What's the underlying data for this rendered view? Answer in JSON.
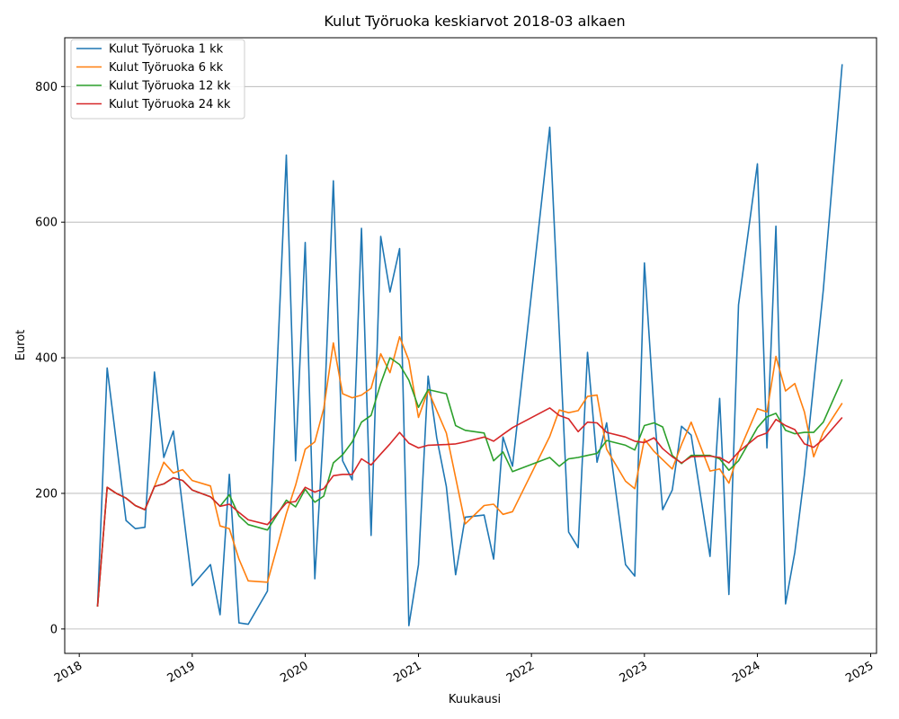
{
  "chart_data": {
    "type": "line",
    "title": "Kulut Työruoka keskiarvot 2018-03 alkaen",
    "xlabel": "Kuukausi",
    "ylabel": "Eurot",
    "xlim": [
      "2017-11-15",
      "2025-01-20"
    ],
    "ylim": [
      -36,
      872
    ],
    "x_ticks": [
      "2018",
      "2019",
      "2020",
      "2021",
      "2022",
      "2023",
      "2024",
      "2025"
    ],
    "y_ticks": [
      0,
      200,
      400,
      600,
      800
    ],
    "grid": "horizontal",
    "legend_placement": "top-left",
    "series": [
      {
        "name": "Kulut Työruoka 1 kk",
        "color": "#1f77b4",
        "points": [
          [
            "2018-03",
            33
          ],
          [
            "2018-04",
            385
          ],
          [
            "2018-06",
            160
          ],
          [
            "2018-07",
            148
          ],
          [
            "2018-08",
            150
          ],
          [
            "2018-09",
            379
          ],
          [
            "2018-10",
            253
          ],
          [
            "2018-11",
            292
          ],
          [
            "2019-01",
            64
          ],
          [
            "2019-03",
            95
          ],
          [
            "2019-04",
            21
          ],
          [
            "2019-05",
            228
          ],
          [
            "2019-06",
            9
          ],
          [
            "2019-07",
            7
          ],
          [
            "2019-09",
            56
          ],
          [
            "2019-11",
            699
          ],
          [
            "2019-12",
            248
          ],
          [
            "2020-01",
            570
          ],
          [
            "2020-02",
            74
          ],
          [
            "2020-03",
            300
          ],
          [
            "2020-04",
            661
          ],
          [
            "2020-05",
            248
          ],
          [
            "2020-06",
            220
          ],
          [
            "2020-07",
            591
          ],
          [
            "2020-08",
            138
          ],
          [
            "2020-09",
            579
          ],
          [
            "2020-10",
            497
          ],
          [
            "2020-11",
            561
          ],
          [
            "2020-12",
            5
          ],
          [
            "2021-01",
            95
          ],
          [
            "2021-02",
            373
          ],
          [
            "2021-03",
            282
          ],
          [
            "2021-04",
            210
          ],
          [
            "2021-05",
            80
          ],
          [
            "2021-06",
            165
          ],
          [
            "2021-08",
            168
          ],
          [
            "2021-09",
            103
          ],
          [
            "2021-10",
            283
          ],
          [
            "2021-11",
            240
          ],
          [
            "2022-03",
            740
          ],
          [
            "2022-05",
            143
          ],
          [
            "2022-06",
            120
          ],
          [
            "2022-07",
            408
          ],
          [
            "2022-08",
            246
          ],
          [
            "2022-09",
            304
          ],
          [
            "2022-11",
            95
          ],
          [
            "2022-12",
            78
          ],
          [
            "2023-01",
            540
          ],
          [
            "2023-02",
            322
          ],
          [
            "2023-03",
            176
          ],
          [
            "2023-04",
            205
          ],
          [
            "2023-05",
            299
          ],
          [
            "2023-06",
            286
          ],
          [
            "2023-08",
            107
          ],
          [
            "2023-09",
            340
          ],
          [
            "2023-10",
            51
          ],
          [
            "2023-11",
            478
          ],
          [
            "2024-01",
            686
          ],
          [
            "2024-02",
            267
          ],
          [
            "2024-03",
            594
          ],
          [
            "2024-04",
            37
          ],
          [
            "2024-05",
            113
          ],
          [
            "2024-06",
            228
          ],
          [
            "2024-08",
            500
          ],
          [
            "2024-10",
            833
          ]
        ]
      },
      {
        "name": "Kulut Työruoka 6 kk",
        "color": "#ff7f0e",
        "points": [
          [
            "2018-03",
            33
          ],
          [
            "2018-04",
            209
          ],
          [
            "2018-05",
            200
          ],
          [
            "2018-06",
            193
          ],
          [
            "2018-07",
            182
          ],
          [
            "2018-08",
            176
          ],
          [
            "2018-09",
            210
          ],
          [
            "2018-10",
            246
          ],
          [
            "2018-11",
            230
          ],
          [
            "2018-12",
            235
          ],
          [
            "2019-01",
            219
          ],
          [
            "2019-03",
            211
          ],
          [
            "2019-04",
            152
          ],
          [
            "2019-05",
            148
          ],
          [
            "2019-06",
            103
          ],
          [
            "2019-07",
            71
          ],
          [
            "2019-09",
            69
          ],
          [
            "2019-11",
            170
          ],
          [
            "2019-12",
            212
          ],
          [
            "2020-01",
            265
          ],
          [
            "2020-02",
            276
          ],
          [
            "2020-03",
            325
          ],
          [
            "2020-04",
            422
          ],
          [
            "2020-05",
            347
          ],
          [
            "2020-06",
            341
          ],
          [
            "2020-07",
            345
          ],
          [
            "2020-08",
            355
          ],
          [
            "2020-09",
            406
          ],
          [
            "2020-10",
            378
          ],
          [
            "2020-11",
            431
          ],
          [
            "2020-12",
            396
          ],
          [
            "2021-01",
            312
          ],
          [
            "2021-02",
            352
          ],
          [
            "2021-04",
            289
          ],
          [
            "2021-06",
            155
          ],
          [
            "2021-08",
            182
          ],
          [
            "2021-09",
            184
          ],
          [
            "2021-10",
            169
          ],
          [
            "2021-11",
            173
          ],
          [
            "2022-03",
            284
          ],
          [
            "2022-04",
            323
          ],
          [
            "2022-05",
            319
          ],
          [
            "2022-06",
            322
          ],
          [
            "2022-07",
            343
          ],
          [
            "2022-08",
            345
          ],
          [
            "2022-09",
            265
          ],
          [
            "2022-11",
            218
          ],
          [
            "2022-12",
            207
          ],
          [
            "2023-01",
            280
          ],
          [
            "2023-02",
            262
          ],
          [
            "2023-04",
            236
          ],
          [
            "2023-05",
            272
          ],
          [
            "2023-06",
            305
          ],
          [
            "2023-08",
            233
          ],
          [
            "2023-09",
            236
          ],
          [
            "2023-10",
            215
          ],
          [
            "2023-11",
            260
          ],
          [
            "2024-01",
            325
          ],
          [
            "2024-02",
            320
          ],
          [
            "2024-03",
            402
          ],
          [
            "2024-04",
            351
          ],
          [
            "2024-05",
            362
          ],
          [
            "2024-06",
            320
          ],
          [
            "2024-07",
            254
          ],
          [
            "2024-08",
            290
          ],
          [
            "2024-10",
            333
          ]
        ]
      },
      {
        "name": "Kulut Työruoka 12 kk",
        "color": "#2ca02c",
        "points": [
          [
            "2018-03",
            33
          ],
          [
            "2018-04",
            209
          ],
          [
            "2018-05",
            200
          ],
          [
            "2018-06",
            193
          ],
          [
            "2018-07",
            182
          ],
          [
            "2018-08",
            176
          ],
          [
            "2018-09",
            210
          ],
          [
            "2018-10",
            214
          ],
          [
            "2018-11",
            223
          ],
          [
            "2018-12",
            219
          ],
          [
            "2019-01",
            205
          ],
          [
            "2019-03",
            195
          ],
          [
            "2019-04",
            181
          ],
          [
            "2019-05",
            198
          ],
          [
            "2019-06",
            167
          ],
          [
            "2019-07",
            154
          ],
          [
            "2019-09",
            146
          ],
          [
            "2019-11",
            190
          ],
          [
            "2019-12",
            180
          ],
          [
            "2020-01",
            206
          ],
          [
            "2020-02",
            187
          ],
          [
            "2020-03",
            196
          ],
          [
            "2020-04",
            245
          ],
          [
            "2020-05",
            257
          ],
          [
            "2020-06",
            276
          ],
          [
            "2020-07",
            305
          ],
          [
            "2020-08",
            315
          ],
          [
            "2020-09",
            362
          ],
          [
            "2020-10",
            400
          ],
          [
            "2020-11",
            390
          ],
          [
            "2020-12",
            367
          ],
          [
            "2021-01",
            327
          ],
          [
            "2021-02",
            353
          ],
          [
            "2021-04",
            347
          ],
          [
            "2021-05",
            300
          ],
          [
            "2021-06",
            293
          ],
          [
            "2021-08",
            289
          ],
          [
            "2021-09",
            248
          ],
          [
            "2021-10",
            261
          ],
          [
            "2021-11",
            232
          ],
          [
            "2022-03",
            253
          ],
          [
            "2022-04",
            240
          ],
          [
            "2022-05",
            251
          ],
          [
            "2022-06",
            253
          ],
          [
            "2022-07",
            256
          ],
          [
            "2022-08",
            259
          ],
          [
            "2022-09",
            278
          ],
          [
            "2022-11",
            271
          ],
          [
            "2022-12",
            264
          ],
          [
            "2023-01",
            300
          ],
          [
            "2023-02",
            304
          ],
          [
            "2023-03",
            298
          ],
          [
            "2023-04",
            256
          ],
          [
            "2023-05",
            244
          ],
          [
            "2023-06",
            256
          ],
          [
            "2023-08",
            256
          ],
          [
            "2023-09",
            251
          ],
          [
            "2023-10",
            234
          ],
          [
            "2023-11",
            248
          ],
          [
            "2024-01",
            297
          ],
          [
            "2024-02",
            313
          ],
          [
            "2024-03",
            318
          ],
          [
            "2024-04",
            293
          ],
          [
            "2024-05",
            288
          ],
          [
            "2024-06",
            290
          ],
          [
            "2024-07",
            290
          ],
          [
            "2024-08",
            305
          ],
          [
            "2024-10",
            368
          ]
        ]
      },
      {
        "name": "Kulut Työruoka 24 kk",
        "color": "#d62728",
        "points": [
          [
            "2018-03",
            33
          ],
          [
            "2018-04",
            209
          ],
          [
            "2018-05",
            200
          ],
          [
            "2018-06",
            193
          ],
          [
            "2018-07",
            182
          ],
          [
            "2018-08",
            176
          ],
          [
            "2018-09",
            210
          ],
          [
            "2018-10",
            214
          ],
          [
            "2018-11",
            223
          ],
          [
            "2018-12",
            219
          ],
          [
            "2019-01",
            205
          ],
          [
            "2019-03",
            195
          ],
          [
            "2019-04",
            181
          ],
          [
            "2019-05",
            184
          ],
          [
            "2019-06",
            172
          ],
          [
            "2019-07",
            161
          ],
          [
            "2019-09",
            154
          ],
          [
            "2019-11",
            186
          ],
          [
            "2019-12",
            188
          ],
          [
            "2020-01",
            209
          ],
          [
            "2020-02",
            202
          ],
          [
            "2020-03",
            207
          ],
          [
            "2020-04",
            226
          ],
          [
            "2020-05",
            228
          ],
          [
            "2020-06",
            228
          ],
          [
            "2020-07",
            251
          ],
          [
            "2020-08",
            242
          ],
          [
            "2020-09",
            258
          ],
          [
            "2020-10",
            273
          ],
          [
            "2020-11",
            290
          ],
          [
            "2020-12",
            274
          ],
          [
            "2021-01",
            267
          ],
          [
            "2021-02",
            271
          ],
          [
            "2021-04",
            272
          ],
          [
            "2021-05",
            273
          ],
          [
            "2021-06",
            276
          ],
          [
            "2021-08",
            283
          ],
          [
            "2021-09",
            277
          ],
          [
            "2021-10",
            287
          ],
          [
            "2021-11",
            297
          ],
          [
            "2022-03",
            326
          ],
          [
            "2022-04",
            315
          ],
          [
            "2022-05",
            310
          ],
          [
            "2022-06",
            291
          ],
          [
            "2022-07",
            305
          ],
          [
            "2022-08",
            304
          ],
          [
            "2022-09",
            290
          ],
          [
            "2022-11",
            283
          ],
          [
            "2022-12",
            277
          ],
          [
            "2023-01",
            275
          ],
          [
            "2023-02",
            282
          ],
          [
            "2023-03",
            266
          ],
          [
            "2023-04",
            254
          ],
          [
            "2023-05",
            245
          ],
          [
            "2023-06",
            254
          ],
          [
            "2023-08",
            255
          ],
          [
            "2023-09",
            253
          ],
          [
            "2023-10",
            245
          ],
          [
            "2023-11",
            261
          ],
          [
            "2024-01",
            284
          ],
          [
            "2024-02",
            289
          ],
          [
            "2024-03",
            309
          ],
          [
            "2024-04",
            300
          ],
          [
            "2024-05",
            294
          ],
          [
            "2024-06",
            273
          ],
          [
            "2024-07",
            268
          ],
          [
            "2024-08",
            280
          ],
          [
            "2024-10",
            312
          ]
        ]
      }
    ]
  }
}
